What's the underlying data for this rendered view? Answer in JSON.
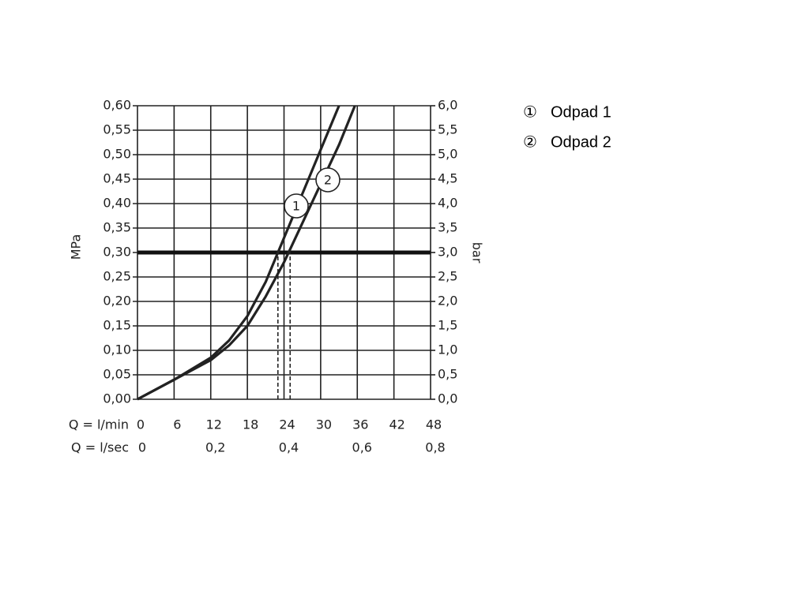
{
  "chart_data": {
    "type": "line",
    "x_label": "Q = l/min",
    "x2_label": "Q = l/sec",
    "y_label": "MPa",
    "y2_label": "bar",
    "xlim": [
      0,
      48
    ],
    "xticks": [
      0,
      6,
      12,
      18,
      24,
      30,
      36,
      42,
      48
    ],
    "x2lim": [
      0,
      0.8
    ],
    "x2ticks": [
      0,
      {
        "value": 0.2,
        "label": "0,2"
      },
      {
        "value": 0.4,
        "label": "0,4"
      },
      {
        "value": 0.6,
        "label": "0,6"
      },
      {
        "value": 0.8,
        "label": "0,8"
      }
    ],
    "ylim": [
      0,
      0.6
    ],
    "yticks": [
      {
        "value": 0,
        "label": "0,00"
      },
      {
        "value": 0.05,
        "label": "0,05"
      },
      {
        "value": 0.1,
        "label": "0,10"
      },
      {
        "value": 0.15,
        "label": "0,15"
      },
      {
        "value": 0.2,
        "label": "0,20"
      },
      {
        "value": 0.25,
        "label": "0,25"
      },
      {
        "value": 0.3,
        "label": "0,30"
      },
      {
        "value": 0.35,
        "label": "0,35"
      },
      {
        "value": 0.4,
        "label": "0,40"
      },
      {
        "value": 0.45,
        "label": "0,45"
      },
      {
        "value": 0.5,
        "label": "0,50"
      },
      {
        "value": 0.55,
        "label": "0,55"
      },
      {
        "value": 0.6,
        "label": "0,60"
      }
    ],
    "y2lim": [
      0,
      6
    ],
    "y2ticks": [
      {
        "value": 0,
        "label": "0,0"
      },
      {
        "value": 0.5,
        "label": "0,5"
      },
      {
        "value": 1,
        "label": "1,0"
      },
      {
        "value": 1.5,
        "label": "1,5"
      },
      {
        "value": 2,
        "label": "2,0"
      },
      {
        "value": 2.5,
        "label": "2,5"
      },
      {
        "value": 3,
        "label": "3,0"
      },
      {
        "value": 3.5,
        "label": "3,5"
      },
      {
        "value": 4,
        "label": "4,0"
      },
      {
        "value": 4.5,
        "label": "4,5"
      },
      {
        "value": 5,
        "label": "5,0"
      },
      {
        "value": 5.5,
        "label": "5,5"
      },
      {
        "value": 6,
        "label": "6,0"
      }
    ],
    "grid": true,
    "reference_y": 0.3,
    "reference_x": [
      23,
      25
    ],
    "series": [
      {
        "name": "Odpad 1",
        "marker": "①",
        "label": "1",
        "color": "#222222",
        "x": [
          0,
          6,
          12,
          15,
          18,
          21,
          23,
          26,
          30,
          33
        ],
        "values": [
          0,
          0.04,
          0.085,
          0.12,
          0.17,
          0.24,
          0.3,
          0.39,
          0.51,
          0.6
        ]
      },
      {
        "name": "Odpad 2",
        "marker": "②",
        "label": "2",
        "color": "#222222",
        "x": [
          0,
          6,
          12,
          15,
          18,
          21,
          24,
          27,
          30,
          33,
          35.6
        ],
        "values": [
          0,
          0.04,
          0.08,
          0.11,
          0.15,
          0.21,
          0.28,
          0.36,
          0.44,
          0.52,
          0.6
        ]
      }
    ]
  }
}
